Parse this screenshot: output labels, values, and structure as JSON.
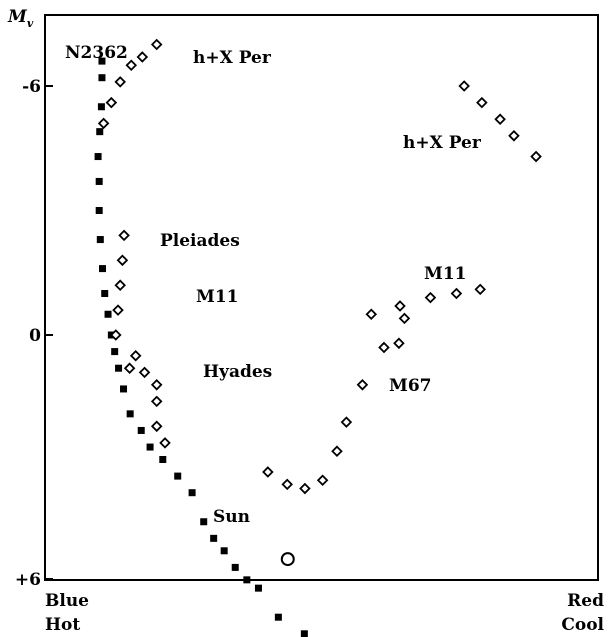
{
  "chart_data": {
    "type": "scatter",
    "title": "",
    "ylabel": "M",
    "ylabel_subscript": "v",
    "ylim": [
      -7.5,
      6
    ],
    "y_inverted": true,
    "y_ticks": [
      {
        "value": -6,
        "label": "-6"
      },
      {
        "value": 0,
        "label": "0"
      },
      {
        "value": 6,
        "label": "+6"
      }
    ],
    "x_left_label": {
      "line1": "Blue",
      "line2": "Hot"
    },
    "x_right_label": {
      "line1": "Red",
      "line2": "Cool"
    },
    "xlim": [
      0,
      100
    ],
    "main_sequence": {
      "marker": "filled-square",
      "points": [
        {
          "x": 10.3,
          "y": -6.6
        },
        {
          "x": 10.3,
          "y": -6.2
        },
        {
          "x": 10.2,
          "y": -5.5
        },
        {
          "x": 9.9,
          "y": -4.9
        },
        {
          "x": 9.6,
          "y": -4.3
        },
        {
          "x": 9.8,
          "y": -3.7
        },
        {
          "x": 9.8,
          "y": -3.0
        },
        {
          "x": 10.0,
          "y": -2.3
        },
        {
          "x": 10.4,
          "y": -1.6
        },
        {
          "x": 10.8,
          "y": -1.0
        },
        {
          "x": 11.4,
          "y": -0.5
        },
        {
          "x": 12.0,
          "y": 0.0
        },
        {
          "x": 12.6,
          "y": 0.4
        },
        {
          "x": 13.3,
          "y": 0.8
        },
        {
          "x": 14.2,
          "y": 1.3
        },
        {
          "x": 15.4,
          "y": 1.9
        },
        {
          "x": 17.4,
          "y": 2.3
        },
        {
          "x": 19.0,
          "y": 2.7
        },
        {
          "x": 21.3,
          "y": 3.0
        },
        {
          "x": 24.0,
          "y": 3.4
        },
        {
          "x": 26.6,
          "y": 3.8
        },
        {
          "x": 28.7,
          "y": 4.5
        },
        {
          "x": 30.5,
          "y": 4.9
        },
        {
          "x": 32.4,
          "y": 5.2
        },
        {
          "x": 34.4,
          "y": 5.6
        },
        {
          "x": 36.5,
          "y": 5.9
        },
        {
          "x": 38.6,
          "y": 6.1
        },
        {
          "x": 42.2,
          "y": 6.8
        },
        {
          "x": 46.9,
          "y": 7.2
        }
      ]
    },
    "clusters": [
      {
        "name": "N2362",
        "marker": "open-diamond",
        "points": []
      },
      {
        "name": "h+X Per",
        "marker": "open-diamond",
        "points": [
          {
            "x": 10.6,
            "y": -5.1
          },
          {
            "x": 12.0,
            "y": -5.6
          },
          {
            "x": 13.6,
            "y": -6.1
          },
          {
            "x": 15.6,
            "y": -6.5
          },
          {
            "x": 17.6,
            "y": -6.7
          },
          {
            "x": 20.2,
            "y": -7.0
          }
        ]
      },
      {
        "name": "h+X Per",
        "marker": "open-diamond",
        "points": [
          {
            "x": 75.8,
            "y": -6.0
          },
          {
            "x": 79.0,
            "y": -5.6
          },
          {
            "x": 82.3,
            "y": -5.2
          },
          {
            "x": 84.8,
            "y": -4.8
          },
          {
            "x": 88.8,
            "y": -4.3
          }
        ]
      },
      {
        "name": "Pleiades",
        "marker": "open-diamond",
        "points": [
          {
            "x": 14.3,
            "y": -2.4
          },
          {
            "x": 14.0,
            "y": -1.8
          },
          {
            "x": 13.6,
            "y": -1.2
          },
          {
            "x": 13.2,
            "y": -0.6
          },
          {
            "x": 12.8,
            "y": 0.0
          }
        ]
      },
      {
        "name": "M11",
        "marker": "open-diamond",
        "points": [
          {
            "x": 15.3,
            "y": 0.8
          },
          {
            "x": 16.4,
            "y": 0.5
          },
          {
            "x": 18.0,
            "y": 0.9
          },
          {
            "x": 59.0,
            "y": -0.5
          },
          {
            "x": 64.2,
            "y": -0.7
          },
          {
            "x": 69.7,
            "y": -0.9
          },
          {
            "x": 74.4,
            "y": -1.0
          },
          {
            "x": 78.7,
            "y": -1.1
          }
        ]
      },
      {
        "name": "Hyades",
        "marker": "open-diamond",
        "points": [
          {
            "x": 20.2,
            "y": 1.2
          },
          {
            "x": 20.2,
            "y": 1.6
          },
          {
            "x": 20.2,
            "y": 2.2
          },
          {
            "x": 21.7,
            "y": 2.6
          }
        ]
      },
      {
        "name": "M67",
        "marker": "open-diamond",
        "points": [
          {
            "x": 40.3,
            "y": 3.3
          },
          {
            "x": 43.8,
            "y": 3.6
          },
          {
            "x": 47.0,
            "y": 3.7
          },
          {
            "x": 50.2,
            "y": 3.5
          },
          {
            "x": 52.8,
            "y": 2.8
          },
          {
            "x": 54.5,
            "y": 2.1
          },
          {
            "x": 57.4,
            "y": 1.2
          },
          {
            "x": 61.3,
            "y": 0.3
          },
          {
            "x": 64.0,
            "y": 0.2
          },
          {
            "x": 65.0,
            "y": -0.4
          }
        ]
      }
    ],
    "sun": {
      "label": "Sun",
      "marker": "open-circle",
      "x": 43.9,
      "y": 5.4
    },
    "annotations": [
      {
        "text": "N2362",
        "ref": "main-sequence-top"
      },
      {
        "text": "h+X Per",
        "ref": "upper-left"
      },
      {
        "text": "h+X Per",
        "ref": "upper-right"
      },
      {
        "text": "Pleiades",
        "ref": "pleiades"
      },
      {
        "text": "M11",
        "ref": "m11-left"
      },
      {
        "text": "M11",
        "ref": "m11-right"
      },
      {
        "text": "Hyades",
        "ref": "hyades"
      },
      {
        "text": "M67",
        "ref": "m67"
      },
      {
        "text": "Sun",
        "ref": "sun"
      }
    ],
    "grid": false,
    "legend": "none",
    "colors": {
      "marker": "#000000",
      "background": "#ffffff",
      "frame": "#000000"
    }
  }
}
